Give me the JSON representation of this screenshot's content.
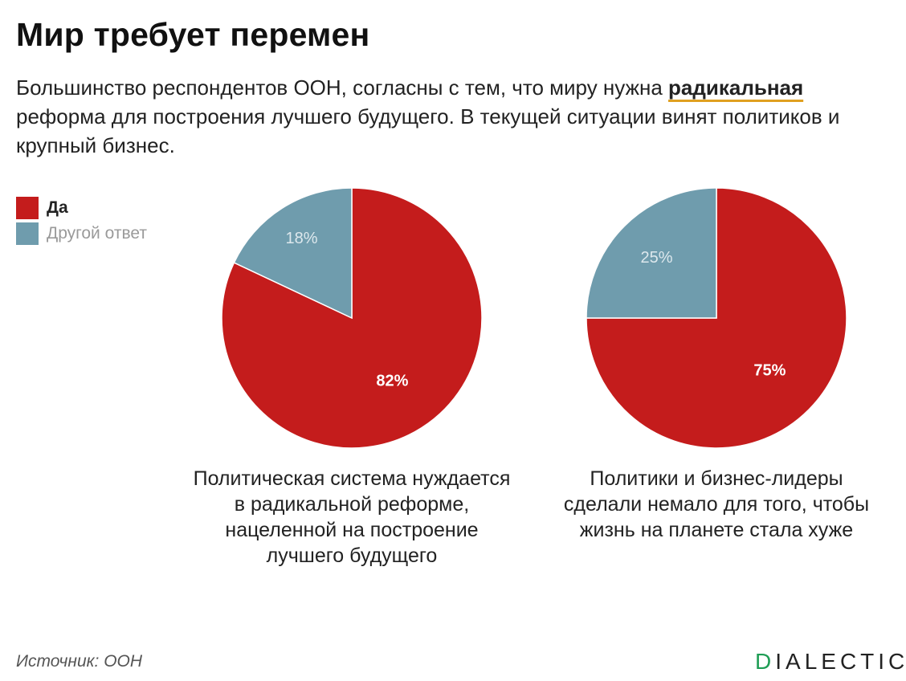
{
  "title": "Мир требует перемен",
  "subtitle": {
    "before": "Большинство респондентов ООН, согласны с тем, что миру нужна ",
    "highlight": "радикальная",
    "after": " реформа для построения лучшего будущего. В текущей ситуации винят политиков и крупный бизнес."
  },
  "legend": [
    {
      "label": "Да",
      "color": "#c41c1c"
    },
    {
      "label": "Другой ответ",
      "color": "#6f9cad"
    }
  ],
  "source": "Источник: ООН",
  "logo": {
    "first": "D",
    "rest": "IALECTIC"
  },
  "chart_data": [
    {
      "type": "pie",
      "caption": "Политическая система нуждается в радикальной реформе, нацеленной на построение лучшего будущего",
      "slices": [
        {
          "label": "Да",
          "value": 82,
          "display": "82%",
          "color": "#c41c1c"
        },
        {
          "label": "Другой ответ",
          "value": 18,
          "display": "18%",
          "color": "#6f9cad"
        }
      ]
    },
    {
      "type": "pie",
      "caption": "Политики и бизнес-лидеры сделали немало для того, чтобы жизнь на планете стала хуже",
      "slices": [
        {
          "label": "Да",
          "value": 75,
          "display": "75%",
          "color": "#c41c1c"
        },
        {
          "label": "Другой ответ",
          "value": 25,
          "display": "25%",
          "color": "#6f9cad"
        }
      ]
    }
  ]
}
